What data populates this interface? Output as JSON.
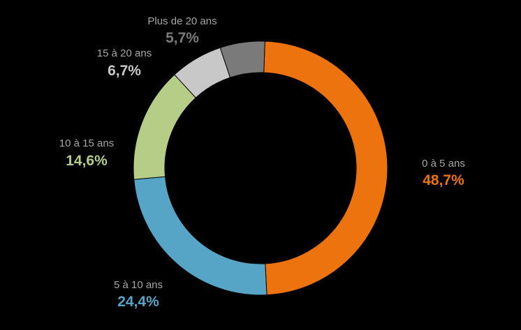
{
  "chart_data": {
    "type": "pie",
    "donut": true,
    "start_angle_deg": 2,
    "direction": "clockwise",
    "legend": "none",
    "categories": [
      "0 à 5 ans",
      "5 à 10 ans",
      "10 à 15 ans",
      "15 à 20 ans",
      "Plus de 20 ans"
    ],
    "values": [
      48.7,
      24.4,
      14.6,
      6.7,
      5.7
    ],
    "value_labels": [
      "48,7%",
      "24,4%",
      "14,6%",
      "6,7%",
      "5,7%"
    ],
    "colors": [
      "#ed730f",
      "#56a5c6",
      "#b6cd88",
      "#c8c8c8",
      "#7a7a7a"
    ],
    "label_text_color": "#a6a6a6",
    "background": "#000000"
  }
}
